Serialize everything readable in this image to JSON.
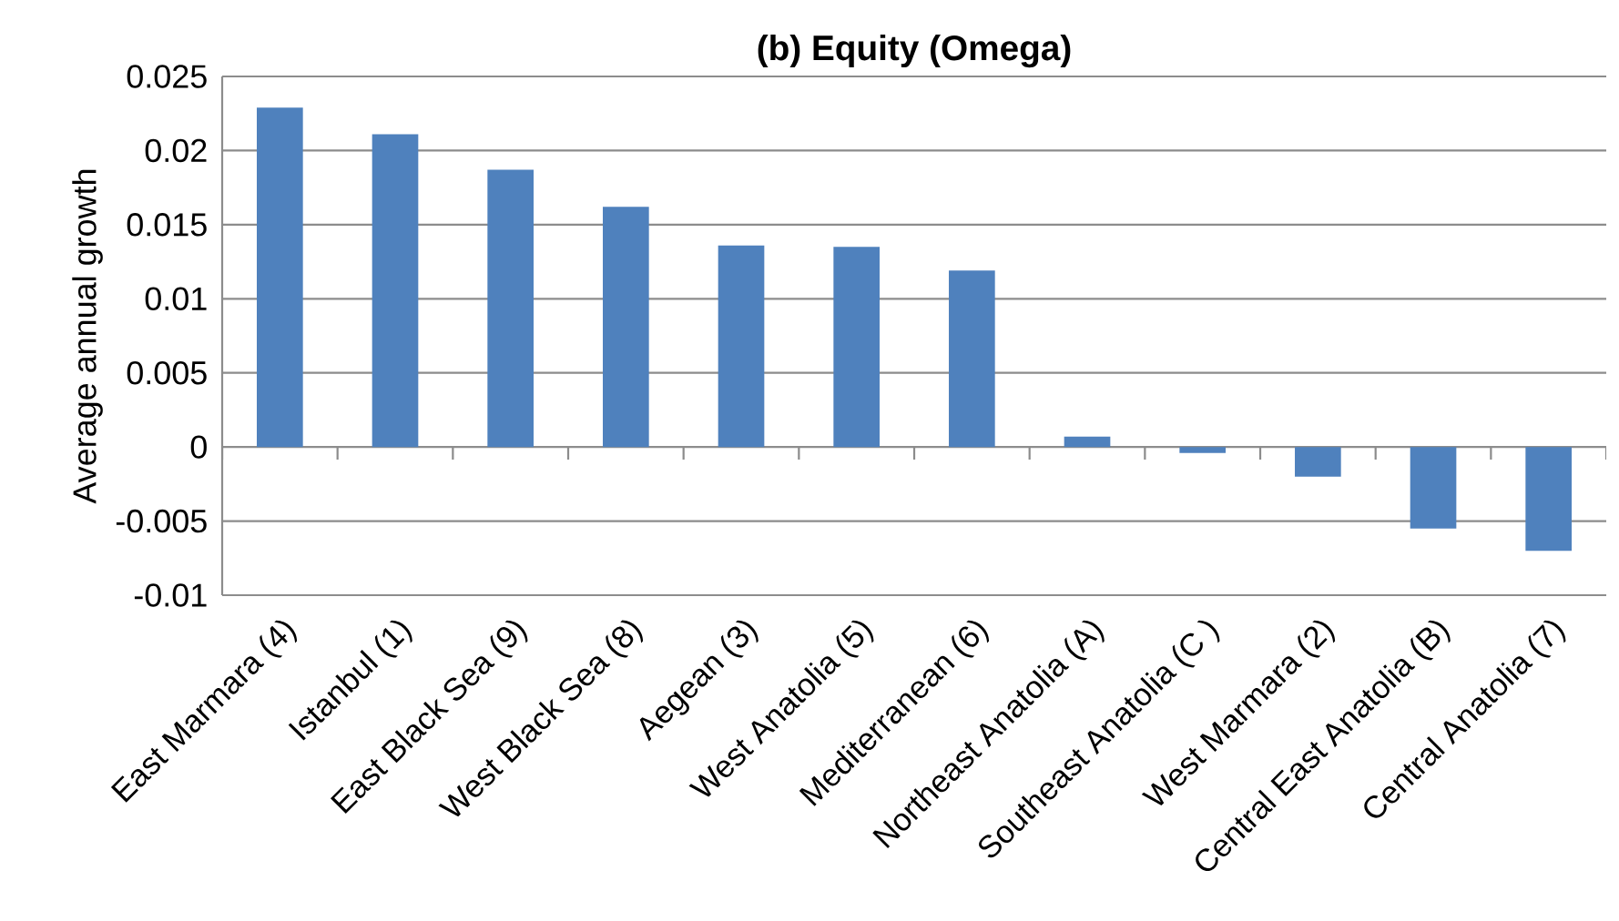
{
  "chart_data": {
    "type": "bar",
    "title": "(b) Equity (Omega)",
    "ylabel": "Average annual growth",
    "categories": [
      "East Marmara (4)",
      "Istanbul (1)",
      "East Black Sea (9)",
      "West Black Sea (8)",
      "Aegean (3)",
      "West Anatolia (5)",
      "Mediterranean (6)",
      "Northeast Anatolia (A)",
      "Southeast Anatolia (C )",
      "West Marmara (2)",
      "Central East Anatolia (B)",
      "Central Anatolia (7)"
    ],
    "values": [
      0.0229,
      0.0211,
      0.0187,
      0.0162,
      0.0136,
      0.0135,
      0.0119,
      0.0007,
      -0.0004,
      -0.002,
      -0.0055,
      -0.007
    ],
    "color": "#4f81bd",
    "ylim": [
      -0.01,
      0.025
    ],
    "yticks": [
      -0.01,
      -0.005,
      0,
      0.005,
      0.01,
      0.015,
      0.02,
      0.025
    ],
    "grid": "y"
  }
}
